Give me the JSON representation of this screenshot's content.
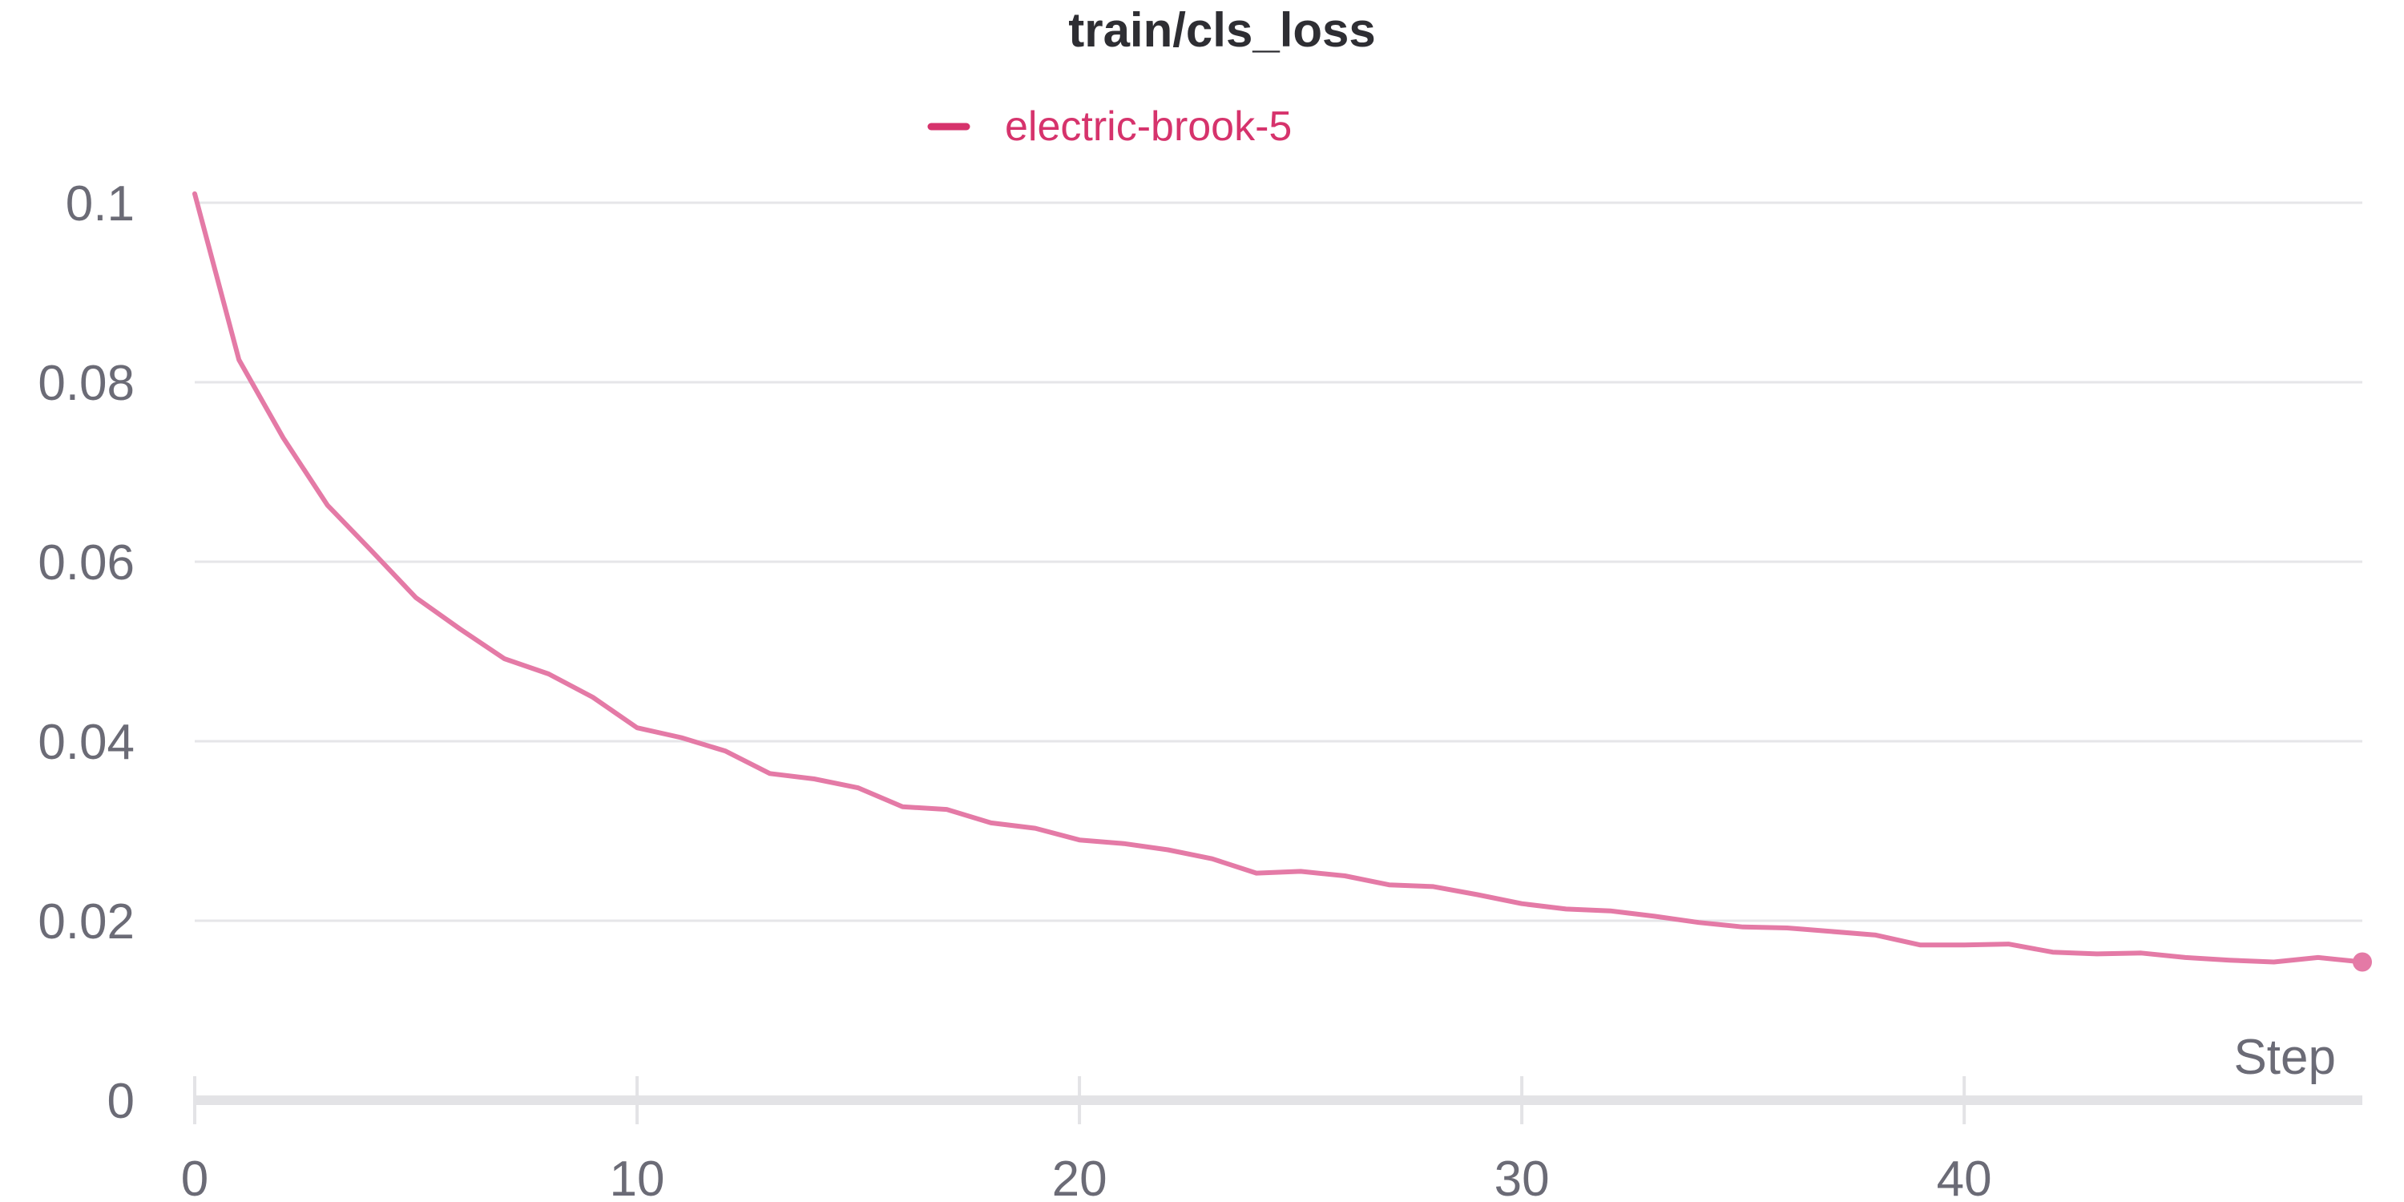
{
  "chart_data": {
    "type": "line",
    "title": "train/cls_loss",
    "xlabel": "Step",
    "ylabel": "",
    "xlim": [
      0,
      49
    ],
    "ylim": [
      0,
      0.1
    ],
    "x_ticks": [
      0,
      10,
      20,
      30,
      40
    ],
    "y_ticks": [
      0,
      0.02,
      0.04,
      0.06,
      0.08,
      0.1
    ],
    "y_tick_labels": [
      "0",
      "0.02",
      "0.04",
      "0.06",
      "0.08",
      "0.1"
    ],
    "grid": true,
    "legend": "top-center",
    "colors": {
      "series": "#e47aa6",
      "legend": "#d6336c",
      "grid": "#e6e6e9",
      "axis": "#e3e3e6",
      "text": "#6b6b76"
    },
    "x": [
      0,
      1,
      2,
      3,
      4,
      5,
      6,
      7,
      8,
      9,
      10,
      11,
      12,
      13,
      14,
      15,
      16,
      17,
      18,
      19,
      20,
      21,
      22,
      23,
      24,
      25,
      26,
      27,
      28,
      29,
      30,
      31,
      32,
      33,
      34,
      35,
      36,
      37,
      38,
      39,
      40,
      41,
      42,
      43,
      44,
      45,
      46,
      47,
      48,
      49
    ],
    "series": [
      {
        "name": "electric-brook-5",
        "values": [
          0.101,
          0.0825,
          0.0738,
          0.0663,
          0.0612,
          0.056,
          0.0525,
          0.0492,
          0.0475,
          0.0449,
          0.0415,
          0.0404,
          0.0389,
          0.0364,
          0.0358,
          0.0348,
          0.0327,
          0.0324,
          0.0309,
          0.0303,
          0.029,
          0.0286,
          0.0279,
          0.0269,
          0.0253,
          0.0255,
          0.025,
          0.024,
          0.0238,
          0.0229,
          0.0219,
          0.0213,
          0.0211,
          0.0205,
          0.0198,
          0.0193,
          0.0192,
          0.0188,
          0.0184,
          0.0173,
          0.0173,
          0.0174,
          0.0165,
          0.0163,
          0.0164,
          0.0159,
          0.0156,
          0.0154,
          0.0159,
          0.0154
        ]
      }
    ]
  }
}
